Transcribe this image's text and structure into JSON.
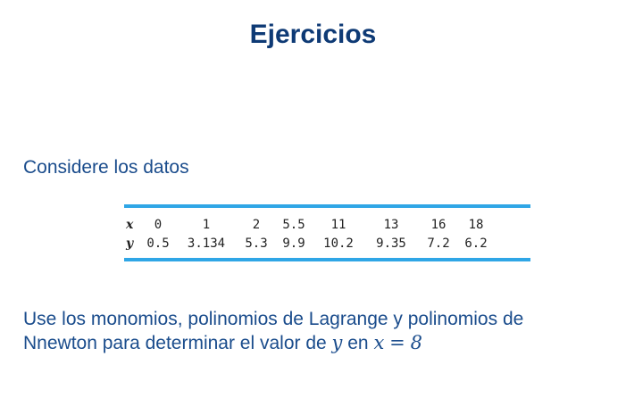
{
  "title": "Ejercicios",
  "intro": "Considere los datos",
  "table": {
    "x_label": "x",
    "y_label": "y",
    "x": [
      "0",
      "1",
      "2",
      "5.5",
      "11",
      "13",
      "16",
      "18"
    ],
    "y": [
      "0.5",
      "3.134",
      "5.3",
      "9.9",
      "10.2",
      "9.35",
      "7.2",
      "6.2"
    ]
  },
  "question": {
    "line1": "Use los monomios, polinomios de Lagrange y polinomios de",
    "line2_prefix": "Nnewton para determinar el valor de",
    "var_y": "y",
    "connector": "en",
    "var_x": "x",
    "equals": "=",
    "value": "8"
  },
  "colors": {
    "title": "#0e3a75",
    "text": "#1a4c8c",
    "rule": "#2fa6e6"
  }
}
